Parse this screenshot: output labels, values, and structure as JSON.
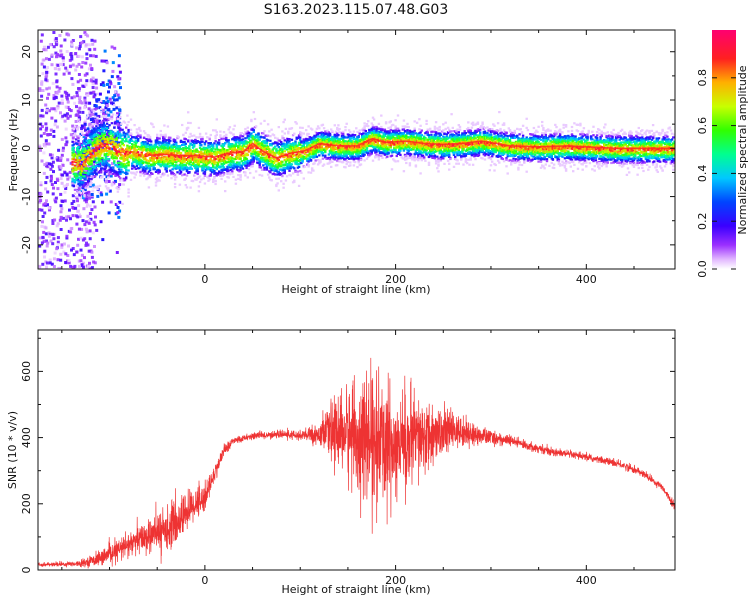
{
  "title": "S163.2023.115.07.48.G03",
  "colors": {
    "snr_line": "#ee3333",
    "axis": "#111111"
  },
  "chart_data": [
    {
      "type": "heatmap",
      "xlabel": "Height of straight line (km)",
      "ylabel": "Frequency (Hz)",
      "xlim": [
        -175,
        493
      ],
      "ylim": [
        -25,
        24.5
      ],
      "xticks": [
        0,
        200,
        400
      ],
      "yticks": [
        -20,
        -10,
        0,
        10,
        20
      ],
      "colorbar": {
        "label": "Normalized spectral amplitude",
        "range": [
          0,
          1
        ],
        "ticks": [
          "0.0",
          "0.2",
          "0.4",
          "0.6",
          "0.8"
        ],
        "tick_values": [
          0.0,
          0.2,
          0.4,
          0.6,
          0.8
        ],
        "colormap": "gist_rainbow_r"
      },
      "ridge": {
        "x": [
          -130,
          -115,
          -105,
          -95,
          -85,
          -75,
          -60,
          -45,
          -30,
          -10,
          10,
          25,
          40,
          50,
          60,
          75,
          90,
          105,
          120,
          140,
          160,
          175,
          190,
          210,
          230,
          250,
          270,
          290,
          320,
          350,
          380,
          400,
          430,
          460,
          493
        ],
        "y": [
          -3,
          0,
          1,
          0,
          -1,
          -0.5,
          -1.5,
          -1.2,
          -1.5,
          -1.5,
          -1.8,
          -1,
          -0.8,
          1,
          -0.5,
          -2,
          -1,
          -0.5,
          1,
          0.5,
          0.5,
          2,
          1.2,
          1.5,
          1,
          0.8,
          1,
          1.5,
          0.5,
          0.3,
          0.5,
          0.3,
          0,
          0,
          0
        ]
      }
    },
    {
      "type": "line",
      "xlabel": "Height of straight line (km)",
      "ylabel": "SNR (10 * v/v)",
      "xlim": [
        -175,
        493
      ],
      "ylim": [
        0,
        725
      ],
      "xticks": [
        0,
        200,
        400
      ],
      "yticks": [
        0,
        200,
        400,
        600
      ],
      "envelope": {
        "x": [
          -175,
          -130,
          -110,
          -90,
          -70,
          -50,
          -30,
          -15,
          0,
          10,
          20,
          30,
          50,
          80,
          100,
          120,
          140,
          160,
          180,
          200,
          220,
          240,
          260,
          280,
          300,
          320,
          340,
          360,
          380,
          400,
          420,
          440,
          460,
          480,
          493
        ],
        "y": [
          15,
          20,
          35,
          60,
          90,
          110,
          140,
          190,
          220,
          290,
          360,
          390,
          405,
          410,
          405,
          410,
          420,
          400,
          380,
          380,
          390,
          410,
          420,
          410,
          400,
          390,
          375,
          360,
          350,
          340,
          330,
          315,
          290,
          250,
          190
        ],
        "spread": [
          5,
          8,
          20,
          30,
          40,
          50,
          60,
          50,
          40,
          25,
          15,
          10,
          10,
          10,
          15,
          30,
          100,
          150,
          170,
          160,
          120,
          80,
          50,
          30,
          20,
          15,
          12,
          12,
          10,
          10,
          10,
          10,
          10,
          10,
          10
        ]
      }
    }
  ]
}
